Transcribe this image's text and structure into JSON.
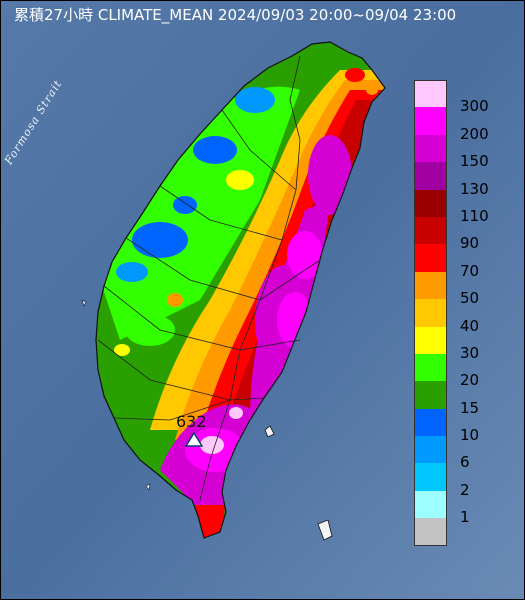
{
  "title": "累積27小時 CLIMATE_MEAN 2024/09/03 20:00~09/04 23:00",
  "strait_label": "Formosa Strait",
  "max_station": {
    "value": "632",
    "marker": "triangle-marker"
  },
  "legend": [
    {
      "label": "300",
      "color": "#ffc8ff"
    },
    {
      "label": "200",
      "color": "#ff00ff"
    },
    {
      "label": "150",
      "color": "#d400d4"
    },
    {
      "label": "130",
      "color": "#a000a0"
    },
    {
      "label": "110",
      "color": "#9a0000"
    },
    {
      "label": "90",
      "color": "#c80000"
    },
    {
      "label": "70",
      "color": "#ff0000"
    },
    {
      "label": "50",
      "color": "#ff9a00"
    },
    {
      "label": "40",
      "color": "#ffc800"
    },
    {
      "label": "30",
      "color": "#ffff00"
    },
    {
      "label": "20",
      "color": "#32ff00"
    },
    {
      "label": "15",
      "color": "#2aa000"
    },
    {
      "label": "10",
      "color": "#0064ff"
    },
    {
      "label": "6",
      "color": "#009aff"
    },
    {
      "label": "2",
      "color": "#00c8ff"
    },
    {
      "label": "1",
      "color": "#9dfeff"
    },
    {
      "label": "",
      "color": "#c3c3c3"
    }
  ]
}
